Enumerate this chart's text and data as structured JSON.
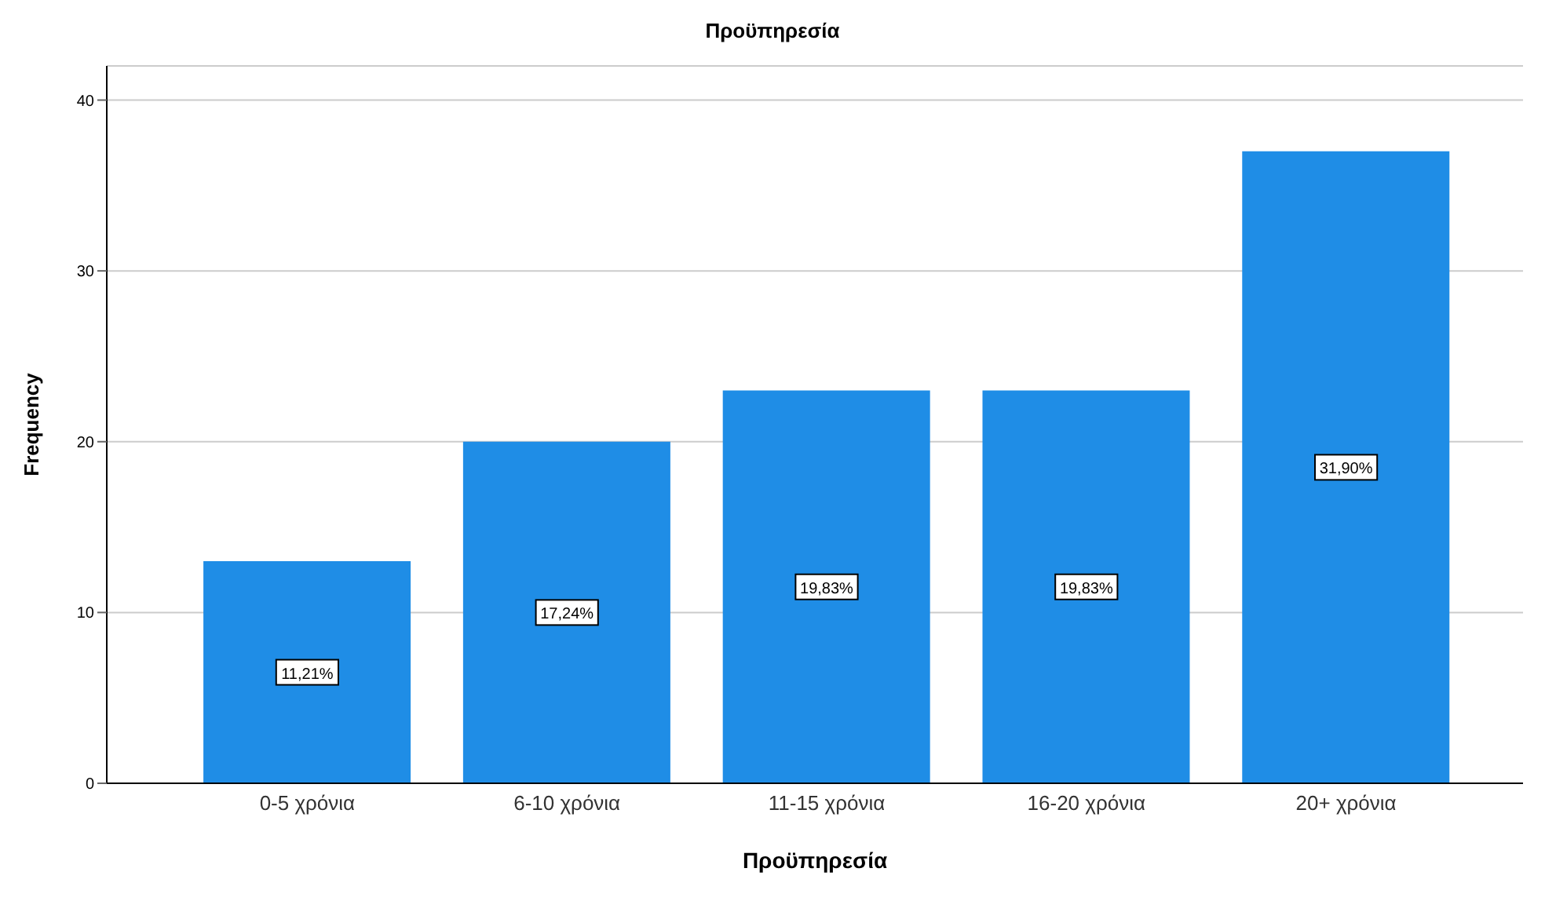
{
  "chart_data": {
    "type": "bar",
    "title": "Προϋπηρεσία",
    "xlabel": "Προϋπηρεσία",
    "ylabel": "Frequency",
    "categories": [
      "0-5 χρόνια",
      "6-10 χρόνια",
      "11-15 χρόνια",
      "16-20 χρόνια",
      "20+ χρόνια"
    ],
    "values": [
      13,
      20,
      23,
      23,
      37
    ],
    "annotations": [
      {
        "text": "11,21%",
        "x": "0-5 χρόνια",
        "y": 6.5
      },
      {
        "text": "17,24%",
        "x": "6-10 χρόνια",
        "y": 10
      },
      {
        "text": "19,83%",
        "x": "11-15 χρόνια",
        "y": 11.5
      },
      {
        "text": "19,83%",
        "x": "16-20 χρόνια",
        "y": 11.5
      },
      {
        "text": "31,90%",
        "x": "20+ χρόνια",
        "y": 18.5
      }
    ],
    "color": "#1f8de6",
    "ylim": [
      0,
      42
    ],
    "yticks": [
      0,
      10,
      20,
      30,
      40
    ],
    "grid": "y"
  }
}
